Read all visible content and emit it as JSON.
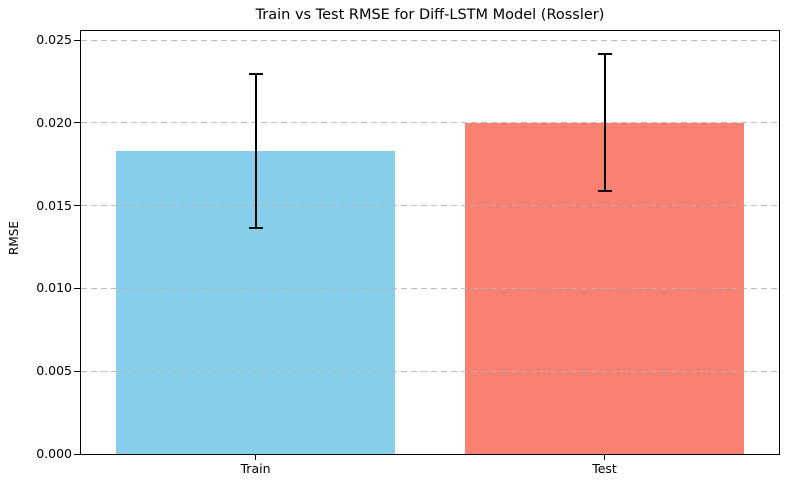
{
  "chart_data": {
    "type": "bar",
    "title": "Train vs Test RMSE for Diff-LSTM Model (Rossler)",
    "xlabel": "",
    "ylabel": "RMSE",
    "categories": [
      "Train",
      "Test"
    ],
    "series": [
      {
        "name": "RMSE",
        "values": [
          0.0183,
          0.02
        ],
        "errors": [
          0.0047,
          0.0042
        ],
        "bar_colors": [
          "#87CEEB",
          "#FA8072"
        ]
      }
    ],
    "error_bar_color": "#000000",
    "ylim": [
      0,
      0.02555
    ],
    "xlim": [
      -0.5,
      1.5
    ],
    "bar_width": 0.8,
    "yticks": [
      {
        "value": 0.0,
        "label": "0.000"
      },
      {
        "value": 0.005,
        "label": "0.005"
      },
      {
        "value": 0.01,
        "label": "0.010"
      },
      {
        "value": 0.015,
        "label": "0.015"
      },
      {
        "value": 0.02,
        "label": "0.020"
      },
      {
        "value": 0.025,
        "label": "0.025"
      }
    ],
    "grid": {
      "axis": "y",
      "style": "dashed",
      "color": "#b2b2b2",
      "above_bars": true
    },
    "legend": {
      "visible": false
    },
    "background_color": "#ffffff"
  }
}
